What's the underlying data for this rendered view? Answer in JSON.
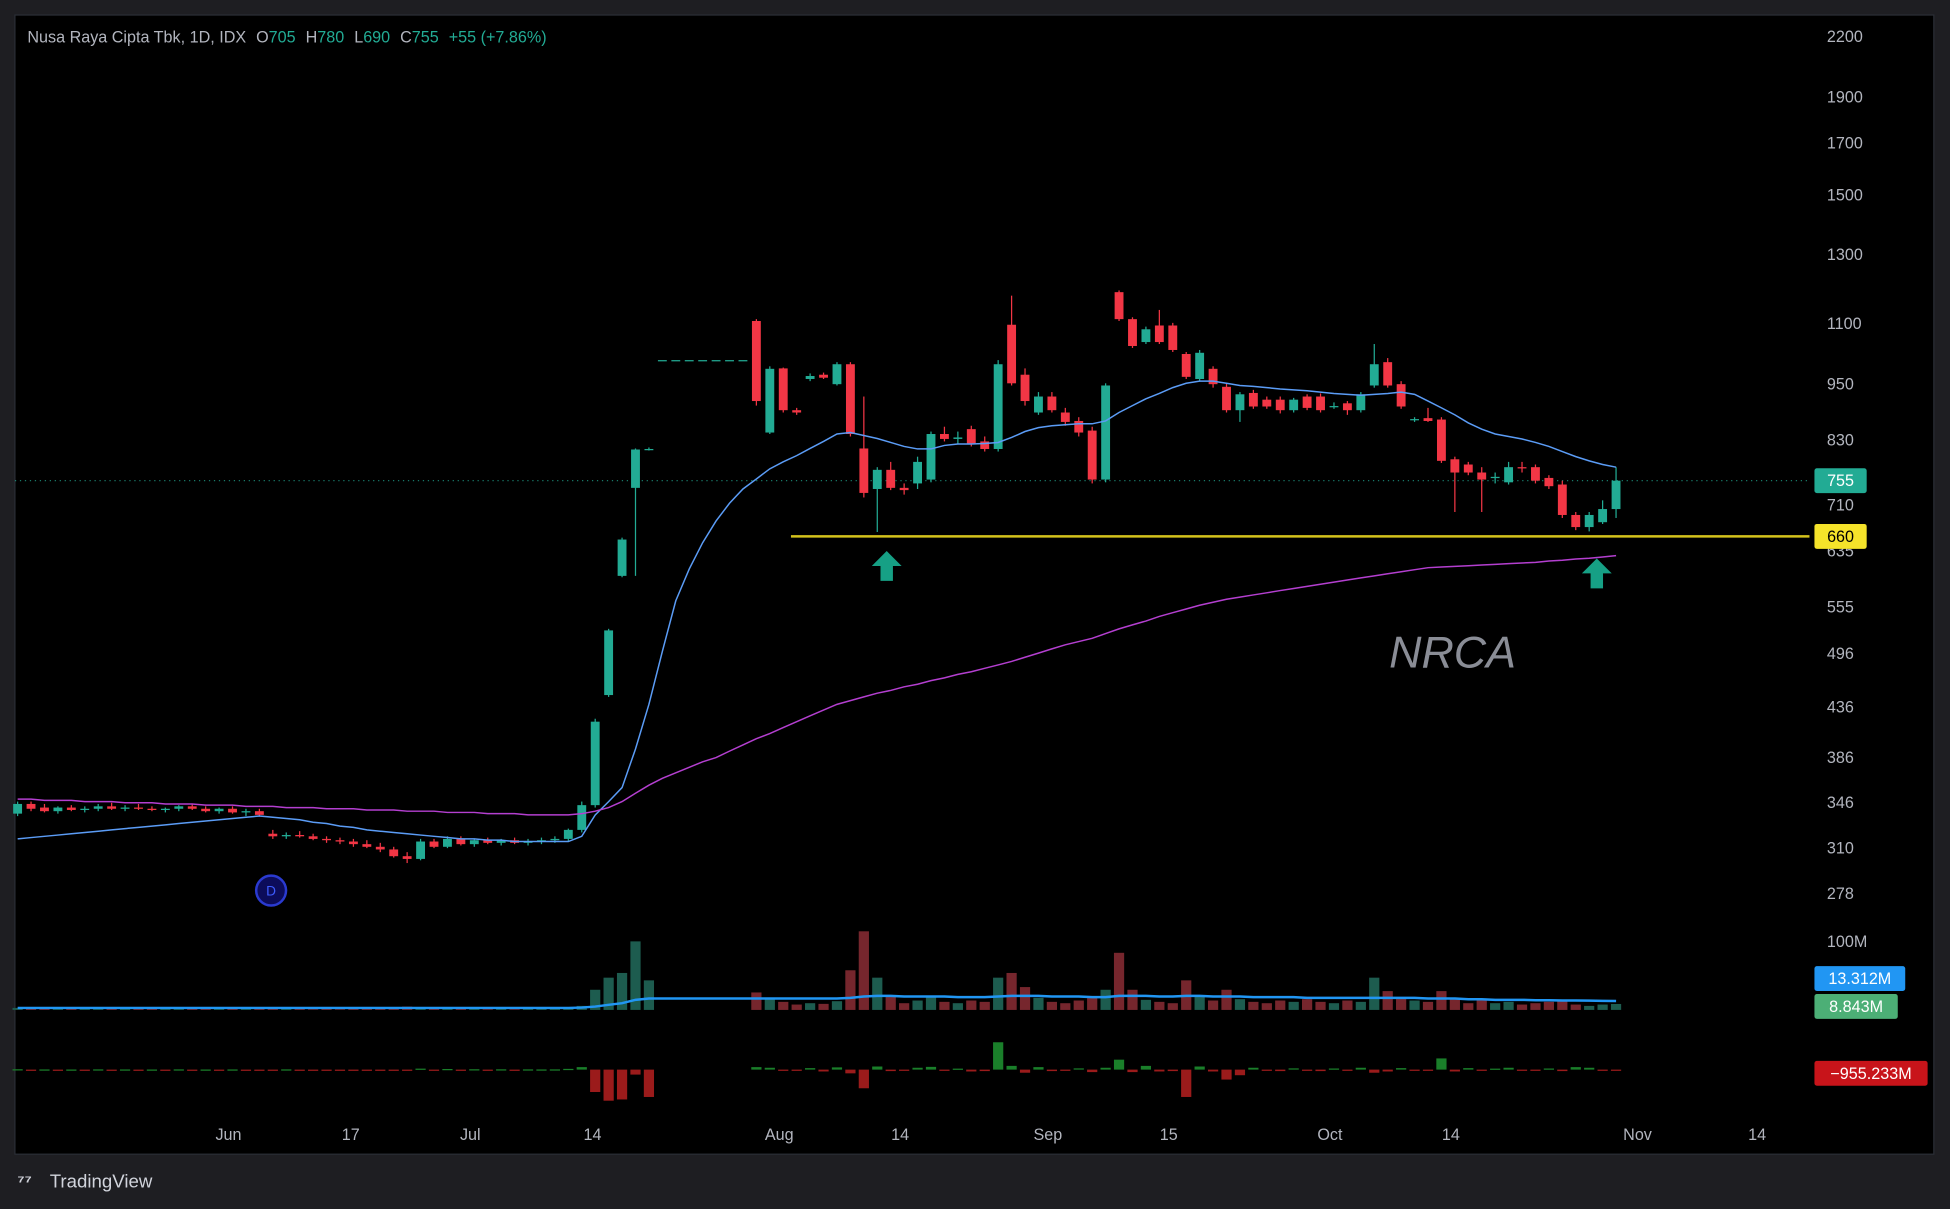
{
  "chart_data": {
    "type": "candlestick",
    "header": {
      "title": "Nusa Raya Cipta Tbk, 1D, IDX",
      "ohlc": [
        {
          "label": "O",
          "value": 705
        },
        {
          "label": "H",
          "value": 780
        },
        {
          "label": "L",
          "value": 690
        },
        {
          "label": "C",
          "value": 755
        }
      ],
      "change": "+55 (+7.86%)"
    },
    "watermark": "NRCA",
    "event_marker": "D",
    "log_scale": true,
    "grid": false,
    "up_color": "#22ab94",
    "down_color": "#f23645",
    "ylim": [
      270,
      2330
    ],
    "yticks": [
      2200,
      1900,
      1700,
      1500,
      1300,
      1100,
      950,
      830,
      710,
      635,
      555,
      496,
      436,
      386,
      346,
      310,
      278
    ],
    "xlim": [
      -0.2,
      133.4
    ],
    "xticks": [
      {
        "value": 15.7,
        "label": "Jun"
      },
      {
        "value": 24.8,
        "label": "17"
      },
      {
        "value": 33.7,
        "label": "Jul"
      },
      {
        "value": 42.8,
        "label": "14"
      },
      {
        "value": 56.7,
        "label": "Aug"
      },
      {
        "value": 65.7,
        "label": "14"
      },
      {
        "value": 76.7,
        "label": "Sep"
      },
      {
        "value": 85.7,
        "label": "15"
      },
      {
        "value": 97.7,
        "label": "Oct"
      },
      {
        "value": 106.7,
        "label": "14"
      },
      {
        "value": 120.6,
        "label": "Nov"
      },
      {
        "value": 129.5,
        "label": "14"
      }
    ],
    "open": [
      338,
      346,
      343,
      340,
      343,
      341,
      342,
      344,
      342,
      343,
      342,
      341,
      342,
      344,
      342,
      340,
      342,
      339,
      340,
      322,
      320,
      321,
      320,
      318,
      317,
      316,
      314,
      312,
      310,
      305,
      303,
      316,
      312,
      318,
      314,
      317,
      315,
      317,
      315,
      316,
      317,
      318,
      325,
      345,
      450,
      600,
      742,
      814,
      1010,
      1010,
      1010,
      1010,
      1010,
      1010,
      1010,
      1110,
      848,
      990,
      895,
      965,
      975,
      953,
      1000,
      816,
      740,
      775,
      742,
      750,
      757,
      845,
      835,
      855,
      830,
      815,
      1100,
      975,
      890,
      925,
      890,
      872,
      852,
      757,
      1190,
      1115,
      1055,
      1098,
      1098,
      1025,
      965,
      989,
      947,
      895,
      933,
      918,
      918,
      895,
      925,
      925,
      903,
      910,
      895,
      950,
      1005,
      953,
      875,
      878,
      875,
      795,
      785,
      770,
      760,
      752,
      780,
      780,
      760,
      748,
      695,
      675,
      683,
      705
    ],
    "high": [
      348,
      348,
      346,
      344,
      345,
      344,
      346,
      347,
      345,
      346,
      344,
      343,
      345,
      346,
      344,
      343,
      344,
      342,
      342,
      325,
      323,
      324,
      322,
      320,
      319,
      318,
      317,
      315,
      312,
      308,
      318,
      318,
      320,
      320,
      318,
      319,
      318,
      319,
      318,
      319,
      320,
      326,
      348,
      425,
      528,
      658,
      816,
      818,
      1010,
      1010,
      1010,
      1010,
      1010,
      1010,
      1010,
      1115,
      995,
      992,
      900,
      978,
      980,
      1005,
      1005,
      925,
      780,
      790,
      750,
      800,
      850,
      860,
      850,
      862,
      840,
      1010,
      1180,
      990,
      935,
      935,
      900,
      880,
      860,
      955,
      1195,
      1120,
      1095,
      1140,
      1105,
      1030,
      1035,
      995,
      955,
      935,
      940,
      925,
      925,
      922,
      930,
      932,
      912,
      915,
      935,
      1050,
      1015,
      960,
      880,
      900,
      880,
      800,
      790,
      780,
      770,
      790,
      790,
      785,
      765,
      755,
      700,
      700,
      720,
      780
    ],
    "low": [
      336,
      340,
      339,
      338,
      340,
      339,
      340,
      341,
      340,
      341,
      340,
      339,
      340,
      341,
      339,
      338,
      338,
      336,
      336,
      318,
      318,
      319,
      317,
      315,
      314,
      312,
      311,
      308,
      304,
      300,
      302,
      311,
      311,
      313,
      312,
      314,
      313,
      314,
      313,
      314,
      315,
      316,
      323,
      343,
      448,
      598,
      600,
      812,
      1010,
      1010,
      1010,
      1010,
      1010,
      1010,
      1010,
      905,
      845,
      890,
      885,
      960,
      965,
      950,
      840,
      725,
      667,
      738,
      730,
      740,
      752,
      830,
      825,
      820,
      810,
      810,
      950,
      905,
      885,
      890,
      862,
      840,
      750,
      752,
      1110,
      1040,
      1050,
      1050,
      1030,
      965,
      960,
      945,
      890,
      870,
      898,
      898,
      888,
      890,
      895,
      890,
      898,
      885,
      890,
      945,
      945,
      898,
      870,
      870,
      788,
      700,
      765,
      700,
      750,
      748,
      770,
      750,
      740,
      690,
      670,
      668,
      680,
      690
    ],
    "close": [
      346,
      342,
      340,
      343,
      341,
      342,
      344,
      342,
      343,
      342,
      341,
      342,
      344,
      342,
      340,
      342,
      339,
      340,
      337,
      320,
      321,
      320,
      318,
      317,
      316,
      314,
      312,
      310,
      305,
      303,
      316,
      312,
      318,
      314,
      317,
      315,
      317,
      315,
      316,
      317,
      318,
      325,
      345,
      422,
      526,
      655,
      814,
      815,
      1010,
      1010,
      1010,
      1010,
      1010,
      1010,
      1010,
      915,
      989,
      895,
      890,
      972,
      968,
      1000,
      845,
      733,
      775,
      742,
      738,
      790,
      845,
      835,
      838,
      825,
      815,
      1000,
      955,
      915,
      925,
      895,
      870,
      848,
      757,
      950,
      1115,
      1045,
      1088,
      1055,
      1035,
      970,
      1028,
      953,
      895,
      930,
      903,
      903,
      895,
      918,
      900,
      895,
      904,
      895,
      930,
      1000,
      950,
      903,
      876,
      872,
      792,
      770,
      770,
      757,
      762,
      780,
      778,
      755,
      745,
      695,
      675,
      695,
      705,
      755
    ],
    "moving_averages": [
      {
        "color": "#5b9cf6",
        "values": [
          318,
          319,
          320,
          321,
          322,
          323,
          324,
          325,
          326,
          327,
          328,
          329,
          330,
          331,
          332,
          333,
          334,
          335,
          336,
          335,
          334,
          333,
          331,
          330,
          328,
          327,
          325,
          324,
          323,
          322,
          321,
          320,
          319,
          318,
          318,
          317,
          317,
          316,
          316,
          316,
          316,
          316,
          320,
          337,
          348,
          360,
          395,
          440,
          500,
          565,
          610,
          650,
          685,
          715,
          740,
          758,
          777,
          790,
          802,
          816,
          830,
          845,
          848,
          842,
          836,
          828,
          820,
          815,
          815,
          822,
          825,
          825,
          826,
          828,
          838,
          850,
          858,
          862,
          864,
          866,
          866,
          872,
          890,
          905,
          920,
          932,
          945,
          955,
          960,
          960,
          955,
          950,
          948,
          945,
          942,
          940,
          938,
          935,
          932,
          930,
          928,
          930,
          932,
          935,
          930,
          915,
          900,
          885,
          868,
          855,
          845,
          840,
          835,
          828,
          820,
          810,
          800,
          792,
          785,
          780
        ]
      },
      {
        "color": "#b43fd0",
        "values": [
          350,
          350,
          349,
          349,
          349,
          348,
          348,
          348,
          347,
          347,
          347,
          346,
          346,
          346,
          345,
          345,
          345,
          344,
          344,
          344,
          343,
          343,
          343,
          342,
          342,
          342,
          341,
          341,
          341,
          340,
          340,
          340,
          339,
          339,
          339,
          338,
          338,
          338,
          337,
          337,
          337,
          337,
          338,
          340,
          343,
          348,
          355,
          362,
          368,
          373,
          378,
          383,
          387,
          393,
          399,
          405,
          410,
          416,
          422,
          428,
          434,
          440,
          444,
          448,
          452,
          455,
          459,
          462,
          466,
          469,
          473,
          476,
          480,
          484,
          488,
          493,
          498,
          503,
          508,
          512,
          516,
          522,
          528,
          533,
          538,
          544,
          549,
          554,
          559,
          563,
          567,
          570,
          573,
          576,
          579,
          582,
          585,
          588,
          591,
          594,
          597,
          600,
          603,
          606,
          609,
          612,
          613,
          614,
          615,
          616,
          617,
          618,
          619,
          620,
          622,
          623,
          625,
          626,
          628,
          630
        ]
      }
    ],
    "hline": {
      "value": 660,
      "color": "#d4c21c",
      "label_color": "#f5e32a"
    },
    "last_price_color": "#22ab94",
    "volume": {
      "up_color": "#1d5c4f",
      "down_color": "#76262d",
      "ylim": [
        0,
        124
      ],
      "yticks": [
        {
          "value": 100,
          "label": "100M"
        }
      ],
      "values": [
        3,
        2,
        2,
        3,
        2,
        2,
        3,
        2,
        2,
        3,
        2,
        2,
        2,
        3,
        2,
        2,
        3,
        2,
        2,
        3,
        2,
        2,
        1,
        2,
        1,
        2,
        2,
        3,
        4,
        5,
        4,
        2,
        3,
        2,
        2,
        1,
        2,
        1,
        2,
        2,
        2,
        4,
        6,
        30,
        48,
        55,
        102,
        44,
        null,
        null,
        null,
        null,
        null,
        null,
        null,
        26,
        18,
        12,
        8,
        10,
        9,
        13,
        59,
        117,
        48,
        20,
        10,
        14,
        20,
        12,
        10,
        14,
        12,
        48,
        55,
        34,
        18,
        12,
        10,
        14,
        20,
        30,
        85,
        30,
        15,
        12,
        10,
        44,
        22,
        14,
        30,
        16,
        12,
        10,
        14,
        12,
        16,
        12,
        10,
        14,
        12,
        48,
        28,
        18,
        14,
        12,
        28,
        16,
        10,
        14,
        10,
        12,
        8,
        10,
        12,
        14,
        8,
        6,
        8,
        8.843
      ],
      "value_labels": {
        "119": "8.843M"
      },
      "label_color": "#4caf76"
    },
    "volume_ma": {
      "color": "#2196f3",
      "values": [
        3,
        3,
        3,
        3,
        3,
        3,
        3,
        3,
        3,
        3,
        3,
        3,
        3,
        3,
        3,
        3,
        3,
        3,
        3,
        3,
        3,
        3,
        3,
        3,
        3,
        3,
        3,
        3,
        3,
        3,
        3,
        3,
        3,
        3,
        3,
        3,
        3,
        3,
        3,
        3,
        3,
        3,
        3.5,
        5,
        7.5,
        10,
        15,
        17,
        17,
        17,
        17,
        17,
        17,
        17,
        17,
        17,
        17,
        17,
        17,
        17,
        17,
        17,
        18,
        20,
        21,
        21,
        20,
        20,
        20,
        20,
        19,
        19,
        19,
        20,
        21,
        21,
        21,
        20,
        20,
        20,
        19,
        19,
        21,
        21,
        21,
        20,
        20,
        21,
        21,
        20,
        20,
        20,
        19,
        19,
        19,
        19,
        18,
        18,
        18,
        18,
        18,
        18,
        18,
        18,
        18,
        17,
        17,
        17,
        16,
        16,
        15,
        15,
        15,
        14.5,
        14.5,
        14,
        14,
        13.8,
        13.5,
        13.312
      ],
      "value_labels": {
        "119": "13.312M"
      }
    },
    "flow": {
      "up_color": "#1a7f2a",
      "down_color": "#9b1b1b",
      "label_color": "#c8141a",
      "ylim": [
        -40000,
        40000
      ],
      "values": [
        300,
        -200,
        150,
        -250,
        100,
        -150,
        200,
        -100,
        150,
        -200,
        100,
        -150,
        200,
        -250,
        100,
        -200,
        150,
        -300,
        -200,
        -400,
        200,
        -300,
        -200,
        -350,
        -250,
        -400,
        -300,
        -500,
        -600,
        -700,
        800,
        -400,
        500,
        -350,
        300,
        -200,
        250,
        -150,
        200,
        150,
        200,
        600,
        2000,
        -18000,
        -25000,
        -24000,
        -4000,
        -22000,
        null,
        null,
        null,
        null,
        null,
        null,
        null,
        2000,
        1500,
        -1000,
        -800,
        1200,
        -1500,
        1800,
        -3000,
        -15000,
        2500,
        -1200,
        -800,
        1500,
        2200,
        -1000,
        800,
        -1500,
        -1200,
        22000,
        3000,
        -2500,
        2000,
        -1200,
        -900,
        1000,
        -2000,
        1500,
        8000,
        -2000,
        3000,
        -1500,
        -1200,
        -22000,
        2500,
        -1500,
        -8000,
        -4500,
        1500,
        -1000,
        -1200,
        1000,
        -800,
        -1200,
        900,
        -1000,
        1500,
        -2500,
        -1500,
        1200,
        -800,
        -600,
        9000,
        -1500,
        1200,
        -1000,
        800,
        1500,
        -600,
        -800,
        900,
        -1200,
        2000,
        1500,
        -700,
        -955.233
      ],
      "value_labels": {
        "119": "−955.233M"
      }
    }
  },
  "footer": {
    "brand": "TradingView"
  }
}
